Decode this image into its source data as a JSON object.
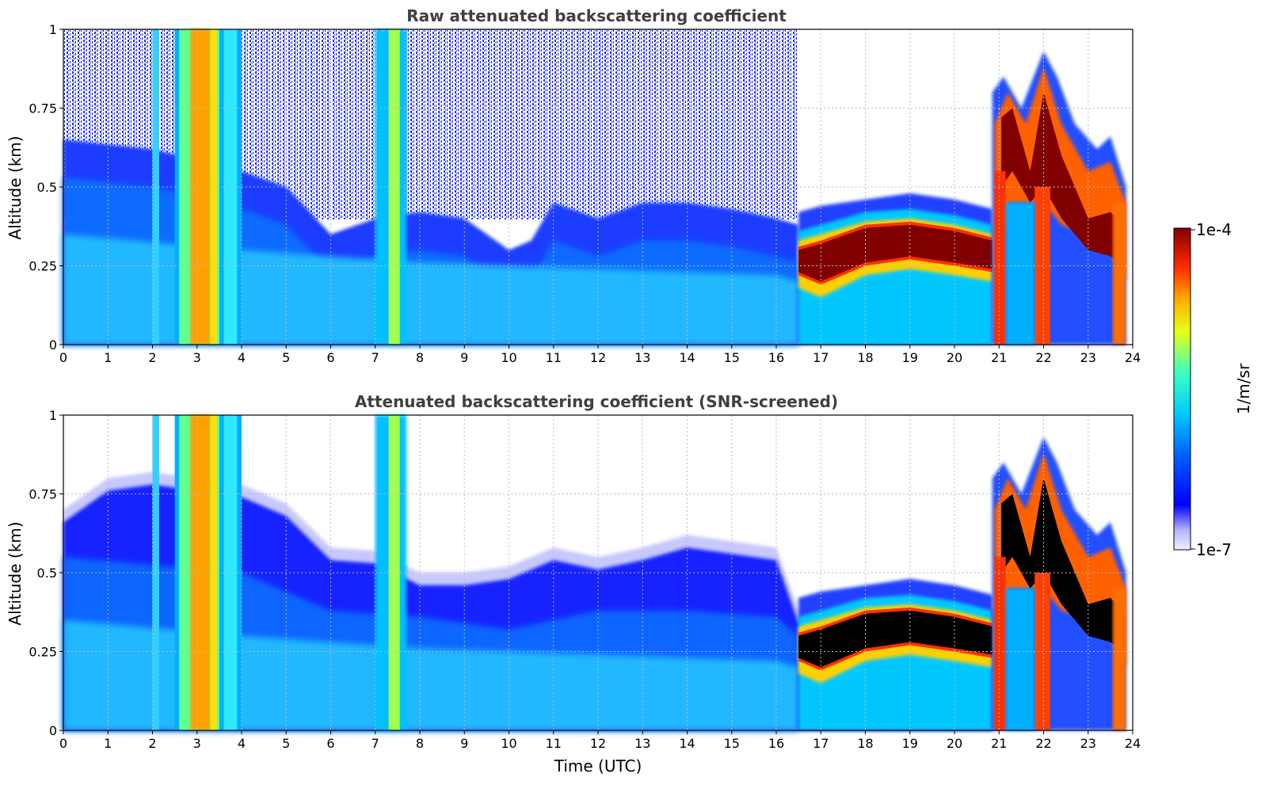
{
  "chart_data": [
    {
      "type": "heatmap",
      "title": "Raw attenuated backscattering coefficient",
      "xlabel": "",
      "ylabel": "Altitude (km)",
      "xlim": [
        0,
        24
      ],
      "ylim": [
        0,
        1
      ],
      "x_ticks": [
        "0",
        "1",
        "2",
        "3",
        "4",
        "5",
        "6",
        "7",
        "8",
        "9",
        "10",
        "11",
        "12",
        "13",
        "14",
        "15",
        "16",
        "17",
        "18",
        "19",
        "20",
        "21",
        "22",
        "23",
        "24"
      ],
      "y_ticks": [
        "0",
        "0.25",
        "0.5",
        "0.75",
        "1"
      ],
      "grid": true,
      "colorscale": "jet",
      "log_color_range": [
        1e-07,
        0.0001
      ],
      "features": {
        "noise_top_km": [
          [
            0,
            0.65
          ],
          [
            2,
            0.62
          ],
          [
            4,
            0.55
          ],
          [
            5,
            0.5
          ],
          [
            6,
            0.35
          ],
          [
            7,
            0.4
          ],
          [
            8,
            0.42
          ],
          [
            9,
            0.4
          ],
          [
            10,
            0.3
          ],
          [
            10.5,
            0.33
          ],
          [
            11,
            0.45
          ],
          [
            12,
            0.4
          ],
          [
            13,
            0.45
          ],
          [
            14,
            0.45
          ],
          [
            15,
            0.43
          ],
          [
            16,
            0.4
          ],
          [
            16.5,
            0.38
          ]
        ],
        "cloud_layer_center_km": [
          [
            16.5,
            0.27
          ],
          [
            17,
            0.27
          ],
          [
            18,
            0.33
          ],
          [
            19,
            0.34
          ],
          [
            20,
            0.33
          ],
          [
            20.8,
            0.3
          ]
        ],
        "precip_shafts_utc": [
          [
            2.5,
            4.0
          ],
          [
            6.9,
            7.7
          ],
          [
            20.9,
            21.3
          ],
          [
            21.7,
            22.2
          ],
          [
            23.2,
            23.9
          ]
        ]
      }
    },
    {
      "type": "heatmap",
      "title": "Attenuated backscattering coefficient (SNR-screened)",
      "xlabel": "Time (UTC)",
      "ylabel": "Altitude (km)",
      "xlim": [
        0,
        24
      ],
      "ylim": [
        0,
        1
      ],
      "x_ticks": [
        "0",
        "1",
        "2",
        "3",
        "4",
        "5",
        "6",
        "7",
        "8",
        "9",
        "10",
        "11",
        "12",
        "13",
        "14",
        "15",
        "16",
        "17",
        "18",
        "19",
        "20",
        "21",
        "22",
        "23",
        "24"
      ],
      "y_ticks": [
        "0",
        "0.25",
        "0.5",
        "0.75",
        "1"
      ],
      "grid": true,
      "colorscale": "jet",
      "log_color_range": [
        1e-07,
        0.0001
      ],
      "features": {
        "screened_top_km": [
          [
            0,
            0.7
          ],
          [
            1,
            0.82
          ],
          [
            2,
            0.85
          ],
          [
            4,
            0.8
          ],
          [
            5,
            0.75
          ],
          [
            6,
            0.6
          ],
          [
            7,
            0.6
          ],
          [
            8,
            0.52
          ],
          [
            9,
            0.53
          ],
          [
            10,
            0.55
          ],
          [
            11,
            0.6
          ],
          [
            12,
            0.58
          ],
          [
            13,
            0.6
          ],
          [
            14,
            0.65
          ],
          [
            15,
            0.62
          ],
          [
            16,
            0.6
          ],
          [
            16.5,
            0.38
          ],
          [
            17,
            0.42
          ],
          [
            18,
            0.45
          ],
          [
            19,
            0.48
          ],
          [
            20,
            0.45
          ],
          [
            20.8,
            0.42
          ],
          [
            21.2,
            0.85
          ],
          [
            22,
            0.93
          ],
          [
            23,
            0.7
          ],
          [
            23.8,
            0.5
          ]
        ],
        "saturated_layer": "black above 1e-4"
      }
    }
  ],
  "colorbar": {
    "label": "1/m/sr",
    "ticks": [
      "1e-4",
      "1e-7"
    ],
    "scale": "log"
  }
}
